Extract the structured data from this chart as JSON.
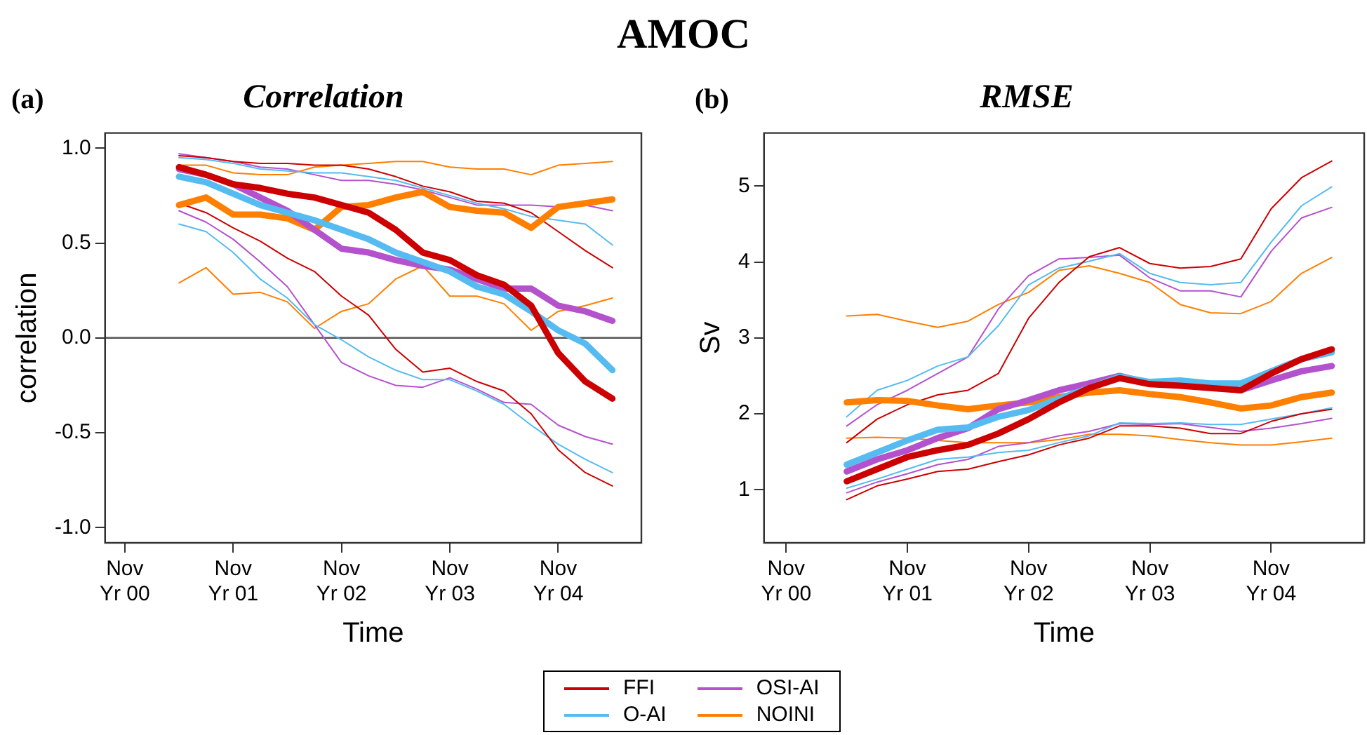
{
  "chart_data": [
    {
      "type": "line",
      "title": "Correlation",
      "xlabel": "Time",
      "ylabel": "correlation",
      "annotations": [
        "AMOC",
        "(a)"
      ],
      "categories": [
        "Nov\nYr 00",
        null,
        null,
        null,
        "Nov\nYr 01",
        null,
        null,
        null,
        "Nov\nYr 02",
        null,
        null,
        null,
        "Nov\nYr 03",
        null,
        null,
        null,
        "Nov\nYr 04",
        null,
        null,
        null
      ],
      "ylim": [
        -1.08,
        1.08
      ],
      "yticks": [
        {
          "value": -1,
          "label": "-1.0"
        },
        {
          "value": -0.5,
          "label": "-0.5"
        },
        {
          "value": 0,
          "label": "0.0"
        },
        0.5,
        {
          "value": 1,
          "label": "1.0"
        }
      ],
      "grid": false,
      "legend": "bottom",
      "line_style": "solid",
      "marker": "none",
      "ref_lines": [
        {
          "axis": "y",
          "value": 0,
          "color": "#555555"
        }
      ],
      "series": [
        {
          "color": "#cc0000",
          "values": [
            null,
            null,
            0.71,
            0.66,
            0.58,
            0.51,
            0.42,
            0.35,
            0.22,
            0.12,
            -0.06,
            -0.18,
            -0.16,
            -0.23,
            -0.28,
            -0.4,
            -0.59,
            -0.71,
            -0.78,
            null
          ]
        },
        {
          "color": "#cc0000",
          "values": [
            null,
            null,
            0.96,
            0.95,
            0.93,
            0.92,
            0.92,
            0.91,
            0.91,
            0.89,
            0.85,
            0.8,
            0.77,
            0.72,
            0.71,
            0.66,
            0.56,
            0.46,
            0.37,
            null
          ]
        },
        {
          "color": "#55bbf0",
          "values": [
            null,
            null,
            0.6,
            0.56,
            0.45,
            0.31,
            0.21,
            0.07,
            -0.01,
            -0.1,
            -0.17,
            -0.22,
            -0.22,
            -0.28,
            -0.35,
            -0.46,
            -0.56,
            -0.64,
            -0.71,
            null
          ]
        },
        {
          "color": "#55bbf0",
          "values": [
            null,
            null,
            0.95,
            0.94,
            0.92,
            0.89,
            0.88,
            0.87,
            0.87,
            0.85,
            0.83,
            0.79,
            0.75,
            0.71,
            0.68,
            0.64,
            0.62,
            0.6,
            0.49,
            null
          ]
        },
        {
          "color": "#b452cd",
          "values": [
            null,
            null,
            0.67,
            0.61,
            0.52,
            0.4,
            0.27,
            0.07,
            -0.13,
            -0.2,
            -0.25,
            -0.26,
            -0.21,
            -0.27,
            -0.34,
            -0.35,
            -0.46,
            -0.52,
            -0.56,
            null
          ]
        },
        {
          "color": "#b452cd",
          "values": [
            null,
            null,
            0.97,
            0.95,
            0.93,
            0.9,
            0.89,
            0.86,
            0.83,
            0.83,
            0.81,
            0.78,
            0.74,
            0.7,
            0.7,
            0.7,
            0.69,
            0.7,
            0.67,
            null
          ]
        },
        {
          "color": "#ff7f00",
          "values": [
            null,
            null,
            0.29,
            0.37,
            0.23,
            0.24,
            0.19,
            0.05,
            0.14,
            0.18,
            0.31,
            0.38,
            0.22,
            0.22,
            0.18,
            0.04,
            0.14,
            0.17,
            0.21,
            null
          ]
        },
        {
          "color": "#ff7f00",
          "values": [
            null,
            null,
            0.91,
            0.91,
            0.87,
            0.86,
            0.86,
            0.9,
            0.91,
            0.92,
            0.93,
            0.93,
            0.9,
            0.89,
            0.89,
            0.86,
            0.91,
            0.92,
            0.93,
            null
          ]
        },
        {
          "name": "FFI",
          "color": "#cc0000",
          "values": [
            null,
            null,
            0.9,
            0.86,
            0.81,
            0.79,
            0.76,
            0.74,
            0.7,
            0.66,
            0.57,
            0.45,
            0.41,
            0.33,
            0.28,
            0.17,
            -0.08,
            -0.23,
            -0.32,
            null
          ]
        },
        {
          "name": "O-AI",
          "color": "#55bbf0",
          "values": [
            null,
            null,
            0.85,
            0.82,
            0.76,
            0.7,
            0.66,
            0.62,
            0.57,
            0.52,
            0.45,
            0.4,
            0.35,
            0.27,
            0.23,
            0.14,
            0.04,
            -0.03,
            -0.17,
            null
          ]
        },
        {
          "name": "OSI-AI",
          "color": "#b452cd",
          "values": [
            null,
            null,
            0.89,
            0.86,
            0.81,
            0.74,
            0.67,
            0.57,
            0.47,
            0.45,
            0.41,
            0.38,
            0.36,
            0.31,
            0.26,
            0.26,
            0.17,
            0.14,
            0.09,
            null
          ]
        },
        {
          "name": "NOINI",
          "color": "#ff7f00",
          "values": [
            null,
            null,
            0.7,
            0.74,
            0.65,
            0.65,
            0.63,
            0.57,
            0.69,
            0.7,
            0.74,
            0.77,
            0.69,
            0.67,
            0.66,
            0.58,
            0.69,
            0.71,
            0.73,
            null
          ]
        }
      ]
    },
    {
      "type": "line",
      "title": "RMSE",
      "xlabel": "Time",
      "ylabel": "Sv",
      "annotations": [
        "(b)"
      ],
      "categories": [
        "Nov\nYr 00",
        null,
        null,
        null,
        "Nov\nYr 01",
        null,
        null,
        null,
        "Nov\nYr 02",
        null,
        null,
        null,
        "Nov\nYr 03",
        null,
        null,
        null,
        "Nov\nYr 04",
        null,
        null,
        null
      ],
      "ylim": [
        0.3,
        5.7
      ],
      "yticks": [
        1,
        2,
        3,
        4,
        5
      ],
      "grid": false,
      "legend": "bottom",
      "line_style": "solid",
      "marker": "none",
      "series": [
        {
          "color": "#cc0000",
          "values": [
            null,
            null,
            0.87,
            1.05,
            1.14,
            1.24,
            1.27,
            1.37,
            1.46,
            1.59,
            1.68,
            1.84,
            1.84,
            1.81,
            1.74,
            1.74,
            1.9,
            2.0,
            2.06,
            null
          ]
        },
        {
          "color": "#cc0000",
          "values": [
            null,
            null,
            1.62,
            1.93,
            2.12,
            2.25,
            2.31,
            2.53,
            3.26,
            3.73,
            4.07,
            4.19,
            3.98,
            3.92,
            3.94,
            4.04,
            4.7,
            5.11,
            5.33,
            null
          ]
        },
        {
          "color": "#55bbf0",
          "values": [
            null,
            null,
            1.02,
            1.14,
            1.27,
            1.4,
            1.43,
            1.49,
            1.52,
            1.62,
            1.71,
            1.88,
            1.87,
            1.88,
            1.86,
            1.86,
            1.93,
            2.0,
            2.08,
            null
          ]
        },
        {
          "color": "#55bbf0",
          "values": [
            null,
            null,
            1.96,
            2.31,
            2.44,
            2.63,
            2.75,
            3.16,
            3.7,
            3.92,
            4.01,
            4.11,
            3.85,
            3.73,
            3.7,
            3.73,
            4.26,
            4.74,
            4.99,
            null
          ]
        },
        {
          "color": "#b452cd",
          "values": [
            null,
            null,
            0.96,
            1.1,
            1.21,
            1.33,
            1.4,
            1.57,
            1.62,
            1.71,
            1.77,
            1.87,
            1.86,
            1.87,
            1.82,
            1.77,
            1.81,
            1.87,
            1.94,
            null
          ]
        },
        {
          "color": "#b452cd",
          "values": [
            null,
            null,
            1.84,
            2.12,
            2.31,
            2.53,
            2.75,
            3.38,
            3.82,
            4.04,
            4.06,
            4.09,
            3.79,
            3.62,
            3.62,
            3.54,
            4.14,
            4.58,
            4.72,
            null
          ]
        },
        {
          "color": "#ff7f00",
          "values": [
            null,
            null,
            1.68,
            1.69,
            1.68,
            1.65,
            1.62,
            1.62,
            1.62,
            1.66,
            1.73,
            1.73,
            1.71,
            1.66,
            1.62,
            1.59,
            1.59,
            1.63,
            1.68,
            null
          ]
        },
        {
          "color": "#ff7f00",
          "values": [
            null,
            null,
            3.29,
            3.31,
            3.22,
            3.14,
            3.22,
            3.44,
            3.6,
            3.89,
            3.95,
            3.85,
            3.73,
            3.44,
            3.33,
            3.32,
            3.48,
            3.85,
            4.06,
            null
          ]
        },
        {
          "name": "FFI",
          "color": "#cc0000",
          "values": [
            null,
            null,
            1.11,
            1.27,
            1.43,
            1.52,
            1.59,
            1.74,
            1.93,
            2.15,
            2.34,
            2.47,
            2.39,
            2.37,
            2.34,
            2.31,
            2.53,
            2.72,
            2.85,
            null
          ]
        },
        {
          "name": "O-AI",
          "color": "#55bbf0",
          "values": [
            null,
            null,
            1.33,
            1.49,
            1.65,
            1.79,
            1.82,
            1.96,
            2.05,
            2.2,
            2.34,
            2.49,
            2.42,
            2.44,
            2.4,
            2.4,
            2.56,
            2.72,
            2.81,
            null
          ]
        },
        {
          "name": "OSI-AI",
          "color": "#b452cd",
          "values": [
            null,
            null,
            1.24,
            1.4,
            1.52,
            1.68,
            1.81,
            2.06,
            2.18,
            2.31,
            2.4,
            2.5,
            2.4,
            2.4,
            2.37,
            2.31,
            2.44,
            2.56,
            2.63,
            null
          ]
        },
        {
          "name": "NOINI",
          "color": "#ff7f00",
          "values": [
            null,
            null,
            2.15,
            2.18,
            2.17,
            2.11,
            2.06,
            2.11,
            2.15,
            2.22,
            2.28,
            2.31,
            2.26,
            2.22,
            2.15,
            2.07,
            2.11,
            2.22,
            2.28,
            null
          ]
        }
      ]
    }
  ]
}
